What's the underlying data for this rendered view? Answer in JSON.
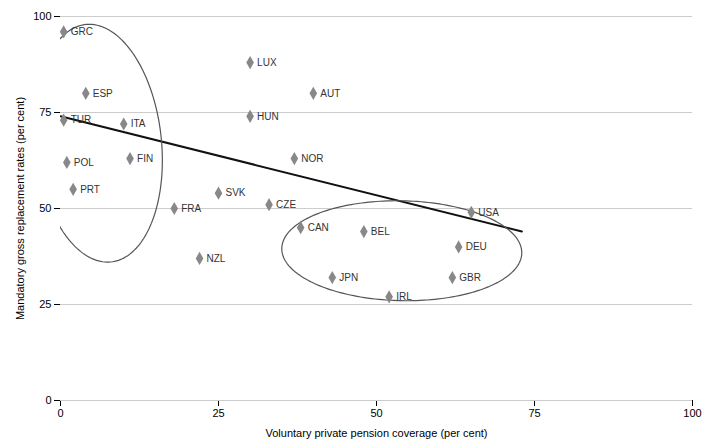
{
  "chart_data": {
    "type": "scatter",
    "xlabel": "Voluntary private pension coverage (per cent)",
    "ylabel": "Mandatory gross replacement rates (per cent)",
    "labels": [
      "GRC",
      "ESP",
      "TUR",
      "ITA",
      "POL",
      "FIN",
      "PRT",
      "FRA",
      "NZL",
      "LUX",
      "HUN",
      "AUT",
      "SVK",
      "CZE",
      "NOR",
      "CAN",
      "BEL",
      "JPN",
      "IRL",
      "GBR",
      "DEU",
      "USA"
    ],
    "x": [
      0.5,
      4,
      0.5,
      10,
      1,
      11,
      2,
      18,
      22,
      30,
      30,
      40,
      25,
      33,
      37,
      38,
      48,
      43,
      52,
      62,
      63,
      65
    ],
    "y": [
      96,
      80,
      73,
      72,
      62,
      63,
      55,
      50,
      37,
      88,
      74,
      80,
      54,
      51,
      63,
      45,
      44,
      32,
      27,
      32,
      40,
      49
    ],
    "color": "#888888",
    "marker": "diamond",
    "trendline": {
      "x": [
        0,
        73
      ],
      "y": [
        74,
        44
      ],
      "color": "#111111"
    },
    "ellipses": [
      {
        "center_x": 6,
        "center_y": 67,
        "width": 20,
        "height": 62,
        "angle": 3,
        "color": "#555555"
      },
      {
        "center_x": 54,
        "center_y": 39,
        "width": 38,
        "height": 26,
        "angle": -3,
        "color": "#555555"
      }
    ],
    "xlim": [
      0,
      100
    ],
    "ylim": [
      0,
      100
    ],
    "xticks": [
      0,
      25,
      50,
      75,
      100
    ],
    "yticks": [
      0,
      25,
      50,
      75,
      100
    ],
    "grid": true
  }
}
